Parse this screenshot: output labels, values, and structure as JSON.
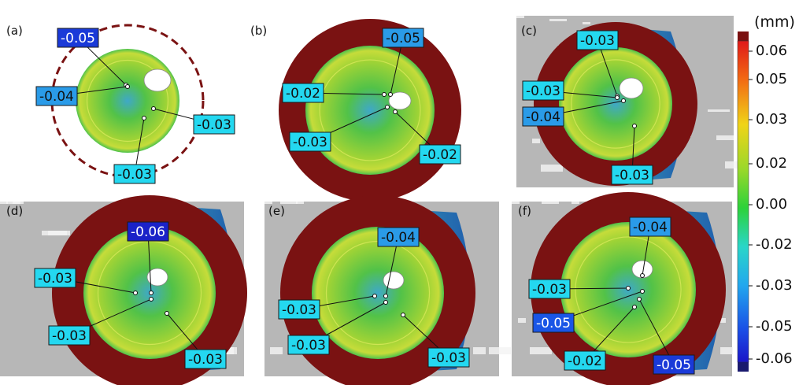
{
  "colorbar": {
    "unit": "(mm)",
    "tick_labels": [
      "0.06",
      "0.05",
      "0.03",
      "0.02",
      "0.00",
      "-0.02",
      "-0.03",
      "-0.05",
      "-0.06"
    ],
    "over_color": "#7a1010",
    "under_color": "#1a1a6e"
  },
  "panels": [
    {
      "label": "(a)",
      "callouts": [
        "-0.05",
        "-0.04",
        "-0.03",
        "-0.03"
      ]
    },
    {
      "label": "(b)",
      "callouts": [
        "-0.05",
        "-0.02",
        "-0.03",
        "-0.02"
      ]
    },
    {
      "label": "(c)",
      "callouts": [
        "-0.03",
        "-0.03",
        "-0.04",
        "-0.03"
      ]
    },
    {
      "label": "(d)",
      "callouts": [
        "-0.06",
        "-0.03",
        "-0.03",
        "-0.03"
      ]
    },
    {
      "label": "(e)",
      "callouts": [
        "-0.04",
        "-0.03",
        "-0.03",
        "-0.03"
      ]
    },
    {
      "label": "(f)",
      "callouts": [
        "-0.04",
        "-0.03",
        "-0.05",
        "-0.02",
        "-0.05"
      ]
    }
  ]
}
